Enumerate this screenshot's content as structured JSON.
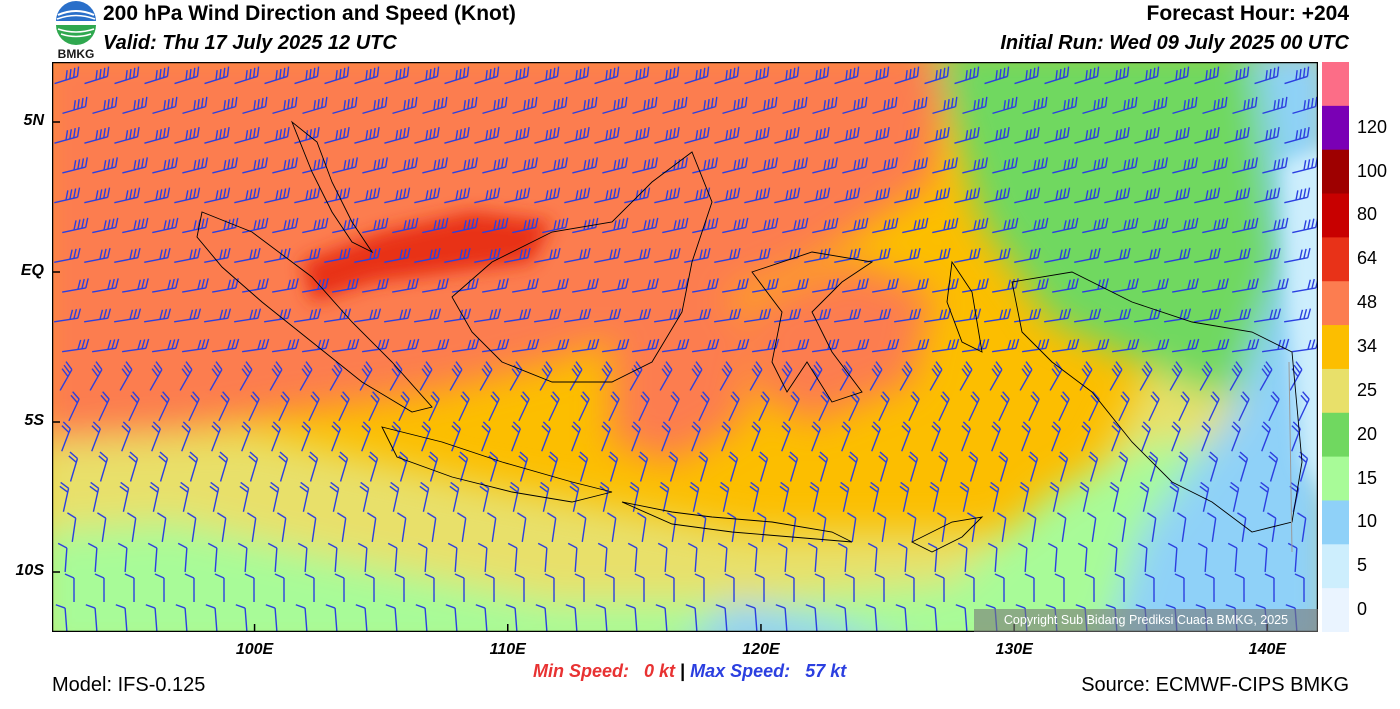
{
  "header": {
    "title": "200 hPa Wind Direction and Speed (Knot)",
    "valid": "Valid: Thu 17 July 2025 12 UTC",
    "forecast_hour": "Forecast Hour: +204",
    "initial_run": "Initial Run: Wed 09 July 2025 00 UTC"
  },
  "logo": {
    "text": "BMKG",
    "icon": "bmkg-logo-icon"
  },
  "axes": {
    "lat_labels": [
      {
        "text": "5N",
        "lat": 5
      },
      {
        "text": "EQ",
        "lat": 0
      },
      {
        "text": "5S",
        "lat": -5
      },
      {
        "text": "10S",
        "lat": -10
      }
    ],
    "lon_labels": [
      {
        "text": "100E",
        "lon": 100
      },
      {
        "text": "110E",
        "lon": 110
      },
      {
        "text": "120E",
        "lon": 120
      },
      {
        "text": "130E",
        "lon": 130
      },
      {
        "text": "140E",
        "lon": 140
      }
    ],
    "lon_range": [
      92,
      142
    ],
    "lat_range": [
      -12,
      7
    ]
  },
  "colorbar": {
    "levels": [
      {
        "label": "",
        "color": "#fc6d87"
      },
      {
        "label": "120",
        "color": "#7a00b5"
      },
      {
        "label": "100",
        "color": "#9e0000"
      },
      {
        "label": "80",
        "color": "#c80000"
      },
      {
        "label": "64",
        "color": "#e83218"
      },
      {
        "label": "48",
        "color": "#fc7d50"
      },
      {
        "label": "34",
        "color": "#fcbe00"
      },
      {
        "label": "25",
        "color": "#e8e06a"
      },
      {
        "label": "20",
        "color": "#70d860"
      },
      {
        "label": "15",
        "color": "#a8fb98"
      },
      {
        "label": "10",
        "color": "#8fd1f8"
      },
      {
        "label": "5",
        "color": "#cdeefd"
      },
      {
        "label": "0",
        "color": "#eaf4ff"
      }
    ]
  },
  "stats": {
    "min_label": "Min Speed:",
    "min_value": "0 kt",
    "separator": "|",
    "max_label": "Max Speed:",
    "max_value": "57 kt"
  },
  "footer": {
    "model": "Model: IFS-0.125",
    "source": "Source: ECMWF-CIPS BMKG",
    "copyright": "Copyright Sub Bidang Prediksi Cuaca BMKG, 2025"
  }
}
